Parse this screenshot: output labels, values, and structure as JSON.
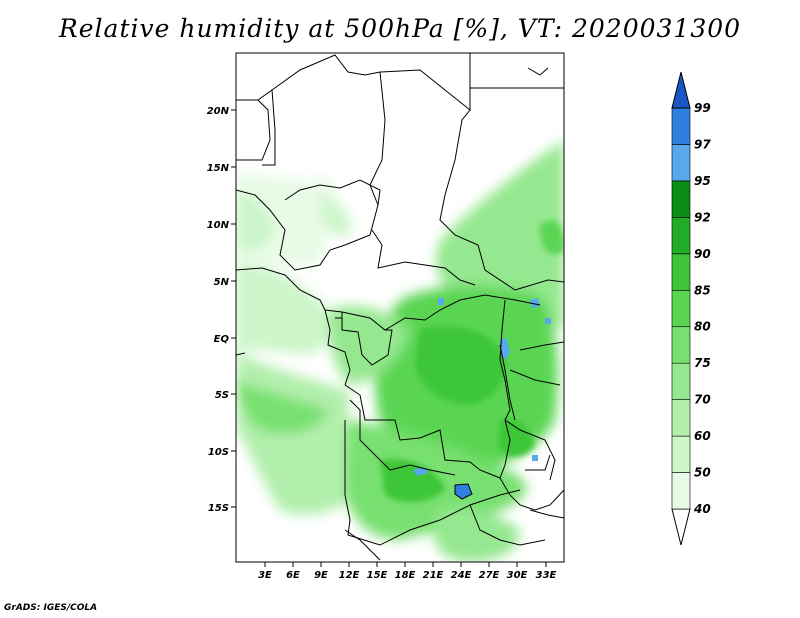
{
  "title": "Relative humidity at 500hPa [%], VT: 2020031300",
  "credit": "GrADS: IGES/COLA",
  "map": {
    "x_ticks": [
      "3E",
      "6E",
      "9E",
      "12E",
      "15E",
      "18E",
      "21E",
      "24E",
      "27E",
      "30E",
      "33E"
    ],
    "y_ticks": [
      "20N",
      "15N",
      "10N",
      "5N",
      "EQ",
      "5S",
      "10S",
      "15S"
    ]
  },
  "colorbar": {
    "levels": [
      "40",
      "50",
      "60",
      "70",
      "75",
      "80",
      "85",
      "90",
      "92",
      "95",
      "97",
      "99"
    ],
    "colors": [
      "#ffffff",
      "#e8fbe6",
      "#ccf5c9",
      "#b2efad",
      "#95e88f",
      "#78e070",
      "#5ad552",
      "#3dc638",
      "#22ad26",
      "#0a8d14",
      "#5aa8ec",
      "#2f7fe0",
      "#1857c4"
    ]
  }
}
